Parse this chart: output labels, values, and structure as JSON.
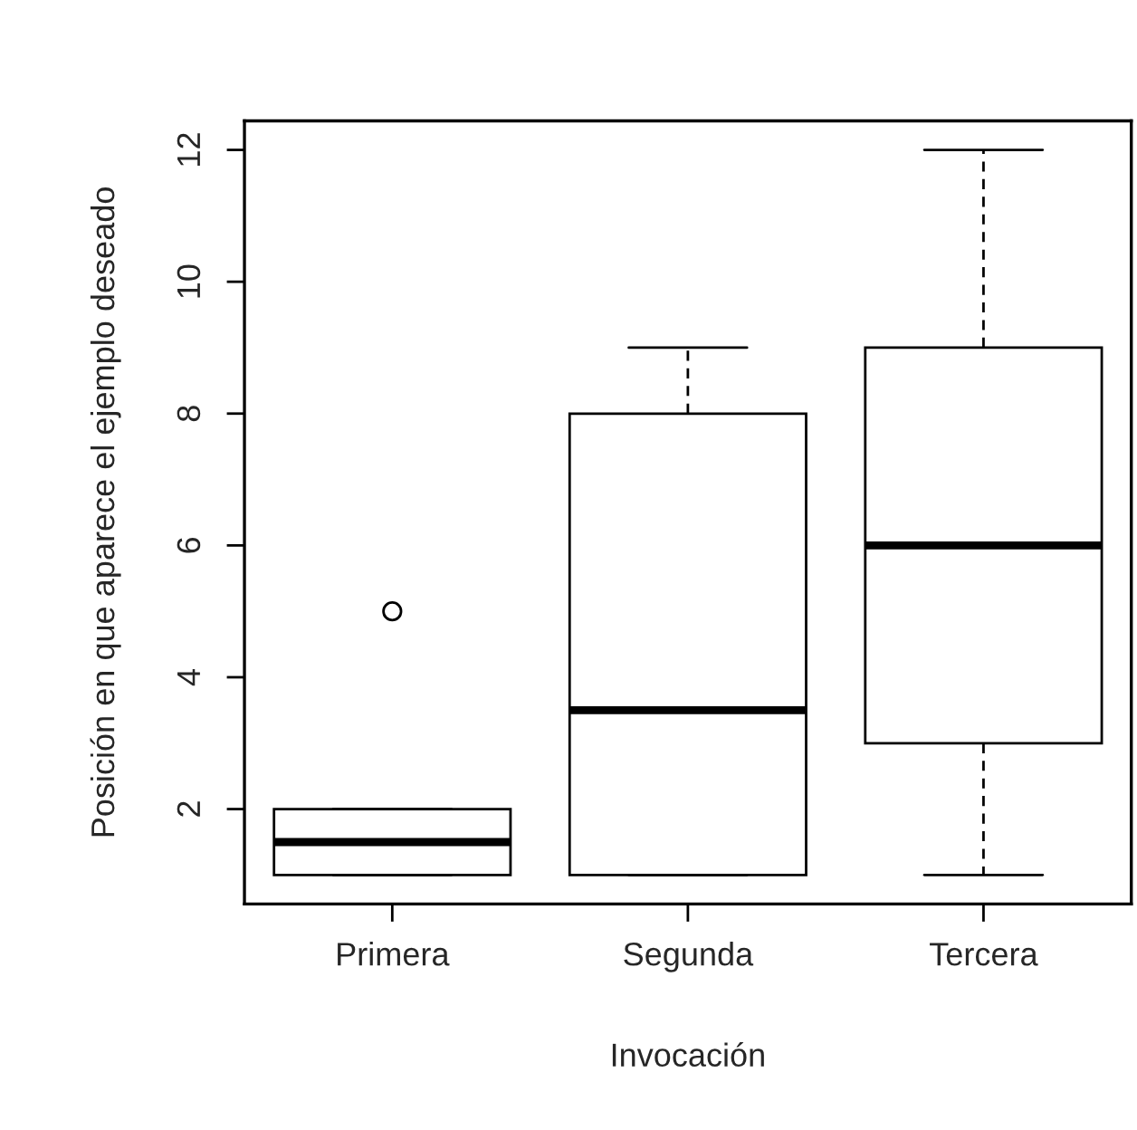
{
  "chart_data": {
    "type": "box",
    "xlabel": "Invocación",
    "ylabel": "Posición en que aparece el ejemplo deseado",
    "categories": [
      "Primera",
      "Segunda",
      "Tercera"
    ],
    "boxes": [
      {
        "low": 1,
        "q1": 1,
        "median": 1.5,
        "q3": 2,
        "high": 2,
        "outliers": [
          5
        ]
      },
      {
        "low": 1,
        "q1": 1,
        "median": 3.5,
        "q3": 8,
        "high": 9
      },
      {
        "low": 1,
        "q1": 3,
        "median": 6,
        "q3": 9,
        "high": 12
      }
    ],
    "ylim": [
      0.56,
      12.44
    ],
    "yticks": [
      2,
      4,
      6,
      8,
      10,
      12
    ],
    "marker": "circle"
  }
}
